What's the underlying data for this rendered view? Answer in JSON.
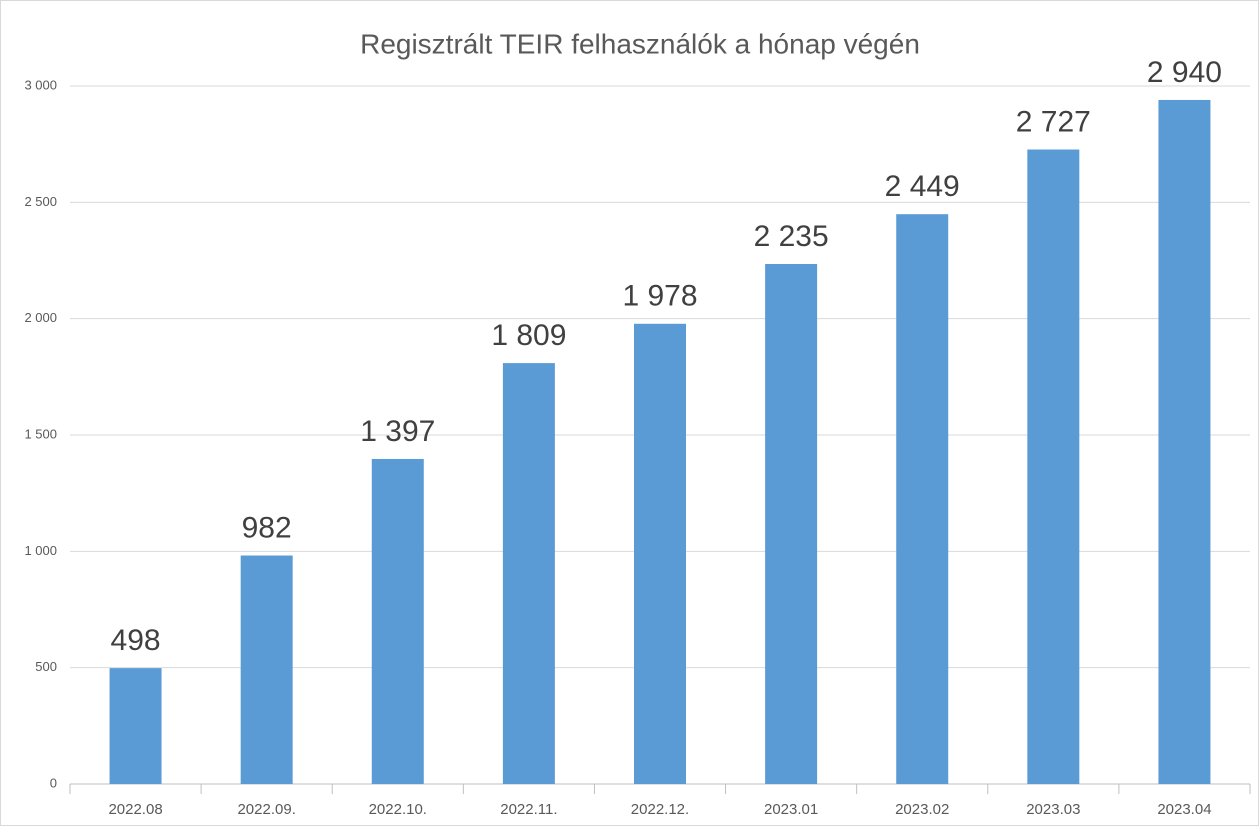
{
  "chart_data": {
    "type": "bar",
    "title": "Regisztrált TEIR felhasználók a hónap végén",
    "categories": [
      "2022.08",
      "2022.09.",
      "2022.10.",
      "2022.11.",
      "2022.12.",
      "2023.01",
      "2023.02",
      "2023.03",
      "2023.04"
    ],
    "values": [
      498,
      982,
      1397,
      1809,
      1978,
      2235,
      2449,
      2727,
      2940
    ],
    "value_labels": [
      "498",
      "982",
      "1 397",
      "1 809",
      "1 978",
      "2 235",
      "2 449",
      "2 727",
      "2 940"
    ],
    "color": "#5b9bd5",
    "ylim": [
      0,
      3000
    ],
    "yticks": [
      0,
      500,
      {
        "value": 1000,
        "label": "1 000"
      },
      {
        "value": 1500,
        "label": "1 500"
      },
      {
        "value": 2000,
        "label": "2 000"
      },
      {
        "value": 2500,
        "label": "2 500"
      },
      {
        "value": 3000,
        "label": "3 000"
      }
    ],
    "grid": true
  }
}
